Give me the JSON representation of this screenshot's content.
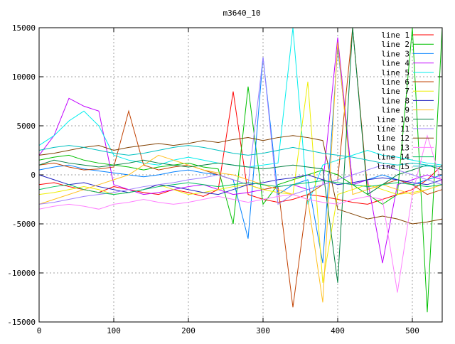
{
  "chart_data": {
    "type": "line",
    "title": "m3640_10",
    "xlabel": "",
    "ylabel": "",
    "xlim": [
      0,
      540
    ],
    "ylim": [
      -15000,
      15000
    ],
    "xticks": [
      0,
      100,
      200,
      300,
      400,
      500
    ],
    "yticks": [
      -15000,
      -10000,
      -5000,
      0,
      5000,
      10000,
      15000
    ],
    "grid": true,
    "legend_position": "top-right",
    "x": [
      0,
      20,
      40,
      60,
      80,
      100,
      120,
      140,
      160,
      180,
      200,
      220,
      240,
      260,
      280,
      300,
      320,
      340,
      360,
      380,
      400,
      420,
      440,
      460,
      480,
      500,
      520,
      540
    ],
    "series": [
      {
        "name": "line 1",
        "color": "#ff0000",
        "values": [
          -1000,
          -800,
          -1200,
          -1500,
          -1800,
          -1200,
          -1500,
          -1800,
          -2000,
          -1500,
          -1800,
          -2200,
          -1500,
          8500,
          -2000,
          -2500,
          -2800,
          -2500,
          -2000,
          -2200,
          -2500,
          -2800,
          -3000,
          -2500,
          -2000,
          -1500,
          -500,
          1000
        ]
      },
      {
        "name": "line 2",
        "color": "#00c000",
        "values": [
          1500,
          1800,
          2000,
          1500,
          1200,
          1000,
          800,
          500,
          800,
          1000,
          1200,
          800,
          600,
          -5000,
          9000,
          -3000,
          -1000,
          -500,
          0,
          500,
          0,
          -1000,
          -2000,
          -3000,
          -2000,
          15000,
          -14000,
          15000
        ]
      },
      {
        "name": "line 3",
        "color": "#0080ff",
        "values": [
          500,
          800,
          1000,
          600,
          400,
          200,
          0,
          -200,
          0,
          300,
          500,
          200,
          0,
          -500,
          -6500,
          12000,
          -2000,
          -1000,
          -500,
          -9000,
          13000,
          -1000,
          -500,
          0,
          -500,
          -1000,
          -500,
          0
        ]
      },
      {
        "name": "line 4",
        "color": "#c000ff",
        "values": [
          2000,
          4000,
          7800,
          7000,
          6500,
          -1000,
          -1500,
          -2000,
          -1800,
          -1500,
          -1200,
          -1000,
          -1500,
          -2000,
          -1800,
          -1500,
          -1200,
          -1000,
          -1500,
          -1000,
          14000,
          -1000,
          -500,
          -9000,
          -1000,
          -500,
          0,
          -500
        ]
      },
      {
        "name": "line 5",
        "color": "#00eeee",
        "values": [
          3000,
          4000,
          5500,
          6500,
          5000,
          2000,
          1500,
          1200,
          1000,
          1500,
          1800,
          1500,
          1200,
          1000,
          800,
          1000,
          1200,
          15000,
          -3000,
          1000,
          1500,
          2000,
          2500,
          2000,
          1800,
          1500,
          1200,
          1000
        ]
      },
      {
        "name": "line 6",
        "color": "#c04000",
        "values": [
          1000,
          1200,
          800,
          500,
          600,
          800,
          6500,
          1000,
          500,
          800,
          1000,
          500,
          0,
          -500,
          -1000,
          -1500,
          -1200,
          -13500,
          -2000,
          -1000,
          -500,
          15000,
          -1500,
          -1000,
          -500,
          -1000,
          -2000,
          -1500
        ]
      },
      {
        "name": "line 7",
        "color": "#eeee00",
        "values": [
          -2000,
          -1800,
          -1500,
          -1200,
          -1500,
          -2000,
          -1800,
          -1500,
          -1000,
          -1500,
          -2000,
          -1800,
          -1500,
          -1200,
          -1000,
          -1500,
          -1800,
          -2000,
          9500,
          -11000,
          -2000,
          -1500,
          -1000,
          -1500,
          -2000,
          -1800,
          -1500,
          -1000
        ]
      },
      {
        "name": "line 8",
        "color": "#2020c0",
        "values": [
          0,
          -500,
          -1000,
          -800,
          -1200,
          -1500,
          -1800,
          -1500,
          -1000,
          -1200,
          -1500,
          -1800,
          -2000,
          -1500,
          -1000,
          -800,
          -500,
          -300,
          0,
          -500,
          -1000,
          -800,
          -500,
          -300,
          -500,
          -800,
          -1000,
          -500
        ]
      },
      {
        "name": "line 9",
        "color": "#ffc020",
        "values": [
          -3000,
          -2500,
          -2000,
          -1500,
          -1000,
          -500,
          0,
          1000,
          2000,
          1500,
          1000,
          500,
          200,
          0,
          -500,
          -1000,
          -1500,
          -2000,
          -2500,
          -13000,
          13500,
          -2000,
          -1500,
          -1000,
          -1500,
          -2000,
          -1500,
          -1000
        ]
      },
      {
        "name": "line 10",
        "color": "#008040",
        "values": [
          1000,
          1500,
          1200,
          1000,
          800,
          1000,
          1200,
          1500,
          1200,
          1000,
          800,
          1000,
          1200,
          1000,
          800,
          600,
          800,
          1000,
          800,
          600,
          -11000,
          15000,
          -2000,
          -1000,
          0,
          500,
          1000,
          500
        ]
      },
      {
        "name": "line 11",
        "color": "#a080ff",
        "values": [
          -3000,
          -2800,
          -2500,
          -2200,
          -2000,
          -1800,
          -1500,
          -1200,
          -1000,
          -800,
          -500,
          -300,
          0,
          -500,
          -1000,
          12000,
          -3000,
          -2000,
          -1500,
          -1000,
          -500,
          0,
          500,
          1000,
          500,
          0,
          -500,
          -1000
        ]
      },
      {
        "name": "line 12",
        "color": "#804000",
        "values": [
          2000,
          2200,
          2500,
          2800,
          3000,
          2500,
          2800,
          3000,
          3200,
          3000,
          3200,
          3500,
          3300,
          3600,
          3800,
          3500,
          3800,
          4000,
          3800,
          3500,
          -3500,
          -4000,
          -4500,
          -4200,
          -4500,
          -5000,
          -4800,
          -4500
        ]
      },
      {
        "name": "line 13",
        "color": "#ff80ff",
        "values": [
          -3500,
          -3200,
          -3000,
          -3200,
          -3500,
          -3000,
          -2800,
          -2500,
          -2800,
          -3000,
          -2800,
          -2500,
          -2200,
          -2500,
          -2800,
          -2500,
          -2200,
          -2000,
          -2500,
          -2800,
          -3000,
          -2500,
          -2200,
          -2500,
          -12000,
          -2000,
          4000,
          -1000
        ]
      },
      {
        "name": "line 14",
        "color": "#00c060",
        "values": [
          -1500,
          -1200,
          -1000,
          -1500,
          -1800,
          -2000,
          -1800,
          -1500,
          -1200,
          -1000,
          -800,
          -1000,
          -1200,
          -1000,
          -800,
          -1000,
          -1200,
          -1000,
          -800,
          -600,
          -800,
          -1000,
          -1200,
          -1000,
          -800,
          -1000,
          -1200,
          -1000
        ]
      },
      {
        "name": "line 15",
        "color": "#00c0c0",
        "values": [
          2500,
          2800,
          3000,
          2800,
          2500,
          2200,
          2000,
          2200,
          2500,
          2800,
          3000,
          2800,
          2500,
          2200,
          2000,
          2200,
          2500,
          2800,
          2500,
          2200,
          2000,
          1800,
          1500,
          1200,
          1000,
          1200,
          1000,
          800
        ]
      }
    ]
  }
}
